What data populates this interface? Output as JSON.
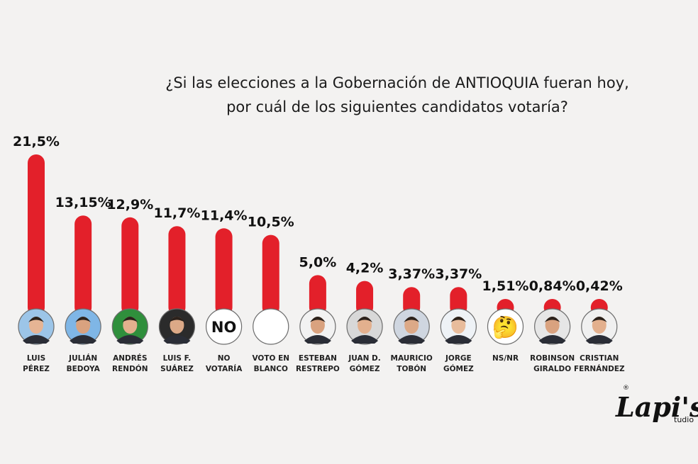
{
  "chart_data": {
    "type": "bar",
    "title_lines": [
      "¿Si las elecciones a la Gobernación de ANTIOQUIA fueran hoy,",
      "por cuál de los siguientes candidatos votaría?"
    ],
    "categories": [
      [
        "LUIS",
        "PÉREZ"
      ],
      [
        "JULIÁN",
        "BEDOYA"
      ],
      [
        "ANDRÉS",
        "RENDÓN"
      ],
      [
        "LUIS F.",
        "SUÁREZ"
      ],
      [
        "NO",
        "VOTARÍA"
      ],
      [
        "VOTO EN",
        "BLANCO"
      ],
      [
        "ESTEBAN",
        "RESTREPO"
      ],
      [
        "JUAN D.",
        "GÓMEZ"
      ],
      [
        "MAURICIO",
        "TOBÓN"
      ],
      [
        "JORGE",
        "GÓMEZ"
      ],
      [
        "NS/NR"
      ],
      [
        "ROBINSON",
        "GIRALDO"
      ],
      [
        "CRISTIAN",
        "FERNÁNDEZ"
      ]
    ],
    "values": [
      21.5,
      13.15,
      12.9,
      11.7,
      11.4,
      10.5,
      5.0,
      4.2,
      3.37,
      3.37,
      1.51,
      0.84,
      0.42
    ],
    "value_labels": [
      "21,5%",
      "13,15%",
      "12,9%",
      "11,7%",
      "11,4%",
      "10,5%",
      "5,0%",
      "4,2%",
      "3,37%",
      "3,37%",
      "1,51%",
      "0,84%",
      "0,42%"
    ],
    "ylim": [
      0,
      21.5
    ],
    "grid": false,
    "legend": "none",
    "bar_color": "#e3202a",
    "avatar_types": [
      "photo",
      "photo",
      "photo",
      "photo",
      "text",
      "blank",
      "photo",
      "photo",
      "photo",
      "photo",
      "emoji",
      "photo",
      "photo"
    ],
    "avatar_text": "NO",
    "avatar_emoji": "🤔"
  },
  "logo": {
    "main": "Lapi's",
    "suffix": "tudio",
    "registered": "®"
  }
}
